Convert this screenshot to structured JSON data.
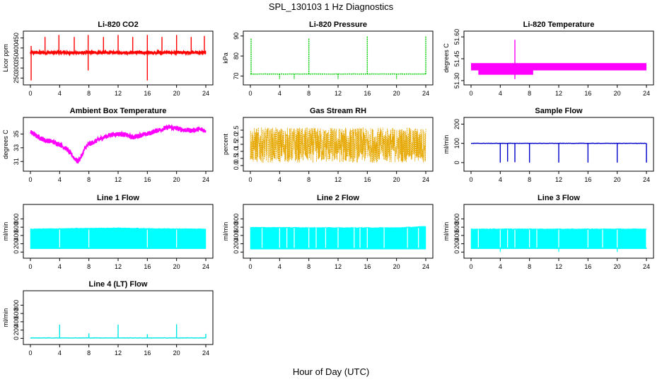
{
  "figure": {
    "title": "SPL_130103  1 Hz Diagnostics",
    "xlabel": "Hour of Day (UTC)"
  },
  "chart_data": [
    {
      "type": "line",
      "title": "Li-820 CO2",
      "ylabel": "Licor ppm",
      "color": "#ff0000",
      "xlim": [
        0,
        24
      ],
      "xticks": [
        0,
        4,
        8,
        12,
        16,
        20,
        24
      ],
      "ylim": [
        230,
        470
      ],
      "yticks": [
        250,
        300,
        350,
        400,
        450
      ],
      "series": [
        {
          "name": "Li-820 CO2",
          "baseline": 377,
          "band": [
            368,
            385
          ],
          "spikes_up": [
            [
              0.1,
              410
            ],
            [
              2.0,
              455
            ],
            [
              3.9,
              465
            ],
            [
              6.0,
              455
            ],
            [
              7.9,
              465
            ],
            [
              10.0,
              455
            ],
            [
              12.0,
              465
            ],
            [
              14.0,
              455
            ],
            [
              16.0,
              465
            ],
            [
              18.0,
              455
            ],
            [
              20.0,
              465
            ],
            [
              22.0,
              455
            ],
            [
              23.8,
              460
            ]
          ],
          "spikes_down": [
            [
              0.1,
              238
            ],
            [
              7.9,
              288
            ],
            [
              16.0,
              238
            ]
          ]
        }
      ]
    },
    {
      "type": "line",
      "title": "Li-820 Pressure",
      "ylabel": "kPa",
      "color": "#00cc00",
      "xlim": [
        0,
        24
      ],
      "xticks": [
        0,
        4,
        8,
        12,
        16,
        20,
        24
      ],
      "ylim": [
        67,
        91
      ],
      "yticks": [
        70,
        80,
        90
      ],
      "series": [
        {
          "name": "Li-820 Pressure",
          "baseline": 71.0,
          "spikes_up": [
            [
              0.1,
              89
            ],
            [
              8.0,
              89
            ],
            [
              16.0,
              90
            ],
            [
              24.0,
              90
            ]
          ],
          "spikes_down": [
            [
              4.0,
              68.5
            ],
            [
              6.0,
              68.5
            ],
            [
              12.0,
              68.5
            ],
            [
              20.0,
              68.5
            ]
          ]
        }
      ]
    },
    {
      "type": "line",
      "title": "Li-820 Temperature",
      "ylabel": "degrees C",
      "color": "#ff00ff",
      "xlim": [
        0,
        24
      ],
      "xticks": [
        0,
        4,
        8,
        12,
        16,
        20,
        24
      ],
      "ylim": [
        51.29,
        51.62
      ],
      "yticks": [
        51.3,
        51.45,
        51.6
      ],
      "series": [
        {
          "name": "Li-820 Temperature",
          "band": [
            51.37,
            51.42
          ],
          "low_band": [
            51.34,
            51.37
          ],
          "low_range": [
            1.0,
            8.5
          ],
          "spikes_up": [
            [
              6.0,
              51.58
            ]
          ],
          "spikes_down": [
            [
              6.0,
              51.31
            ]
          ]
        }
      ]
    },
    {
      "type": "line",
      "title": "Ambient Box Temperature",
      "ylabel": "degrees C",
      "color": "#ff00ff",
      "xlim": [
        0,
        24
      ],
      "xticks": [
        0,
        4,
        8,
        12,
        16,
        20,
        24
      ],
      "ylim": [
        30.0,
        37.0
      ],
      "yticks": [
        31,
        33,
        35
      ],
      "series": [
        {
          "name": "Ambient Box Temperature",
          "x": [
            0,
            1,
            2,
            3,
            4,
            5,
            6,
            6.5,
            7,
            7.5,
            8,
            9,
            10,
            11,
            12,
            13,
            14,
            15,
            16,
            17,
            18,
            19,
            20,
            21,
            22,
            23,
            24
          ],
          "y": [
            35.3,
            34.6,
            34.1,
            33.9,
            33.5,
            32.8,
            31.5,
            31.0,
            31.8,
            33.0,
            33.5,
            34.0,
            34.5,
            34.9,
            35.0,
            34.9,
            34.5,
            34.8,
            35.0,
            35.4,
            35.7,
            36.0,
            35.8,
            35.6,
            35.5,
            35.7,
            35.5
          ]
        }
      ]
    },
    {
      "type": "line",
      "title": "Gas Stream RH",
      "ylabel": "percent",
      "color": "#e6a800",
      "xlim": [
        0,
        24
      ],
      "xticks": [
        0,
        4,
        8,
        12,
        16,
        20,
        24
      ],
      "ylim": [
        -0.2,
        3.2
      ],
      "yticks": [
        0.0,
        0.5,
        1.0,
        1.5,
        2.0,
        2.5
      ],
      "series": [
        {
          "name": "Gas Stream RH",
          "band": [
            0.2,
            2.7
          ],
          "mean": 1.35
        }
      ]
    },
    {
      "type": "line",
      "title": "Sample Flow",
      "ylabel": "ml/min",
      "color": "#0000cc",
      "xlim": [
        0,
        24
      ],
      "xticks": [
        0,
        4,
        8,
        12,
        16,
        20,
        24
      ],
      "ylim": [
        -30,
        220
      ],
      "yticks": [
        0,
        100,
        200
      ],
      "series": [
        {
          "name": "Sample Flow",
          "baseline": 100,
          "spikes_down": [
            [
              4.0,
              0
            ],
            [
              5.0,
              5
            ],
            [
              6.0,
              2
            ],
            [
              8.0,
              0
            ],
            [
              12.0,
              0
            ],
            [
              16.0,
              0
            ],
            [
              20.0,
              0
            ],
            [
              24.0,
              0
            ]
          ]
        }
      ]
    },
    {
      "type": "line",
      "title": "Line 1 Flow",
      "ylabel": "ml/min",
      "color": "#00ffff",
      "xlim": [
        0,
        24
      ],
      "xticks": [
        0,
        4,
        8,
        12,
        16,
        20,
        24
      ],
      "ylim": [
        -80,
        1080
      ],
      "yticks": [
        0,
        200,
        400,
        600,
        800
      ],
      "series": [
        {
          "name": "Line 1 Flow",
          "band": [
            80,
            570
          ],
          "band_top_x": [
            0,
            12,
            16,
            24
          ],
          "band_top_y": [
            560,
            585,
            570,
            560
          ],
          "gaps": [
            4,
            8,
            16,
            20
          ]
        }
      ]
    },
    {
      "type": "line",
      "title": "Line 2 Flow",
      "ylabel": "ml/min",
      "color": "#00ffff",
      "xlim": [
        0,
        24
      ],
      "xticks": [
        0,
        4,
        8,
        12,
        16,
        20,
        24
      ],
      "ylim": [
        -80,
        1080
      ],
      "yticks": [
        0,
        200,
        400,
        600,
        800
      ],
      "series": [
        {
          "name": "Line 2 Flow",
          "band": [
            70,
            600
          ],
          "band_top_x": [
            0,
            12,
            20,
            24
          ],
          "band_top_y": [
            600,
            590,
            590,
            620
          ],
          "gaps": [
            1.6,
            4,
            5,
            6,
            8,
            9,
            10.3,
            12,
            14.2,
            15,
            16,
            18.3,
            21.5,
            23
          ]
        }
      ]
    },
    {
      "type": "line",
      "title": "Line 3 Flow",
      "ylabel": "ml/min",
      "color": "#00ffff",
      "xlim": [
        0,
        24
      ],
      "xticks": [
        0,
        4,
        8,
        12,
        16,
        20,
        24
      ],
      "ylim": [
        -80,
        1080
      ],
      "yticks": [
        0,
        200,
        400,
        600,
        800
      ],
      "series": [
        {
          "name": "Line 3 Flow",
          "band": [
            80,
            560
          ],
          "band_top_x": [
            0,
            24
          ],
          "band_top_y": [
            560,
            560
          ],
          "gaps": [
            1,
            4,
            5,
            6,
            8,
            9,
            12,
            16,
            18,
            20,
            24
          ],
          "spikes_down": [
            [
              4.0,
              0
            ],
            [
              12.0,
              0
            ],
            [
              20.0,
              0
            ]
          ]
        }
      ]
    },
    {
      "type": "line",
      "title": "Line 4 (LT) Flow",
      "ylabel": "ml/min",
      "color": "#00e6e6",
      "xlim": [
        0,
        24
      ],
      "xticks": [
        0,
        4,
        8,
        12,
        16,
        20,
        24
      ],
      "ylim": [
        -80,
        1080
      ],
      "yticks": [
        0,
        200,
        400,
        600,
        800
      ],
      "series": [
        {
          "name": "Line 4 (LT) Flow",
          "baseline": 10,
          "spikes_up": [
            [
              4.0,
              330
            ],
            [
              8.0,
              120
            ],
            [
              12.0,
              330
            ],
            [
              16.0,
              100
            ],
            [
              20.0,
              340
            ],
            [
              24.0,
              110
            ]
          ]
        }
      ]
    }
  ]
}
